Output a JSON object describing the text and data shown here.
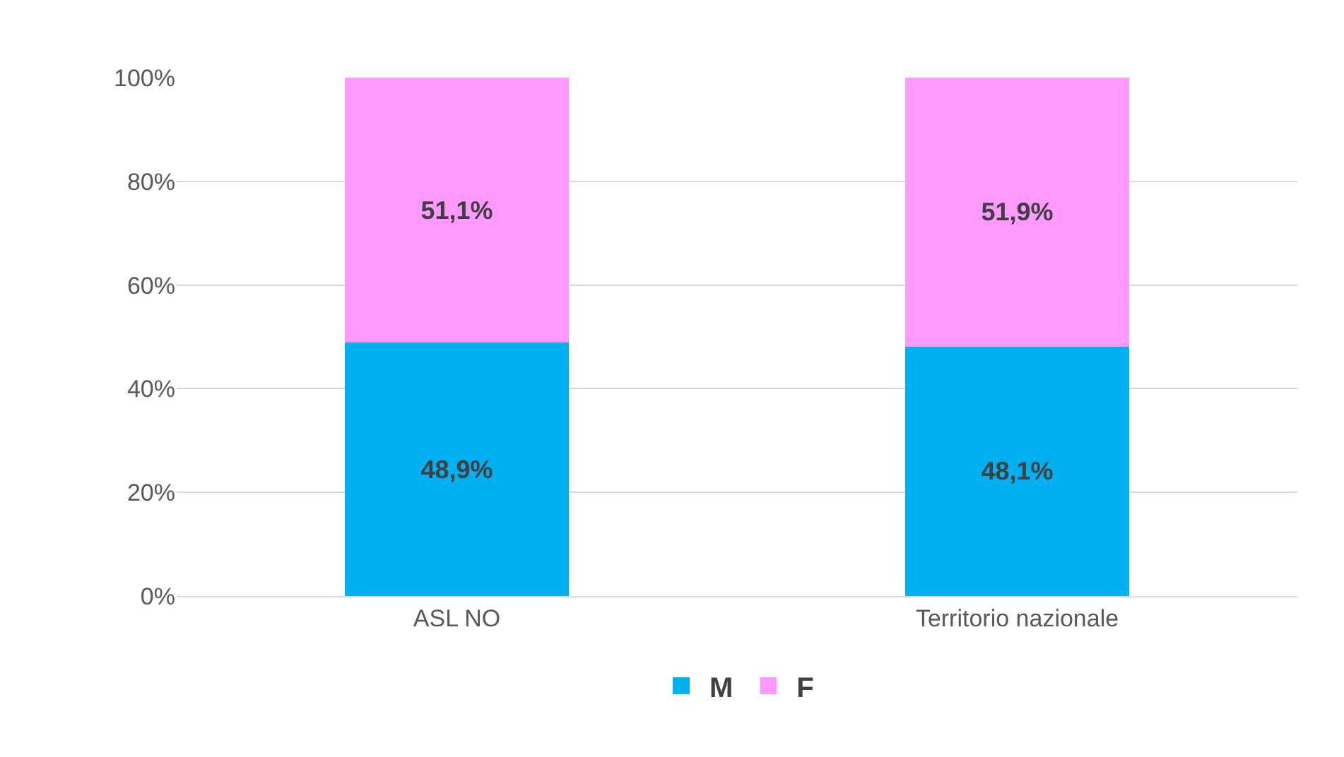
{
  "chart_data": {
    "type": "bar",
    "stacked": true,
    "categories": [
      "ASL NO",
      "Territorio nazionale"
    ],
    "series": [
      {
        "name": "M",
        "color": "#00b0f0",
        "values": [
          48.9,
          48.1
        ],
        "value_labels": [
          "48,9%",
          "48,1%"
        ]
      },
      {
        "name": "F",
        "color": "#ff99ff",
        "values": [
          51.1,
          51.9
        ],
        "value_labels": [
          "51,1%",
          "51,9%"
        ]
      }
    ],
    "ylim": [
      0,
      100
    ],
    "yticks": [
      {
        "value": 0,
        "label": "0%"
      },
      {
        "value": 20,
        "label": "20%"
      },
      {
        "value": 40,
        "label": "40%"
      },
      {
        "value": 60,
        "label": "60%"
      },
      {
        "value": 80,
        "label": "80%"
      },
      {
        "value": 100,
        "label": "100%"
      }
    ],
    "grid": "y",
    "legend": "bottom"
  }
}
